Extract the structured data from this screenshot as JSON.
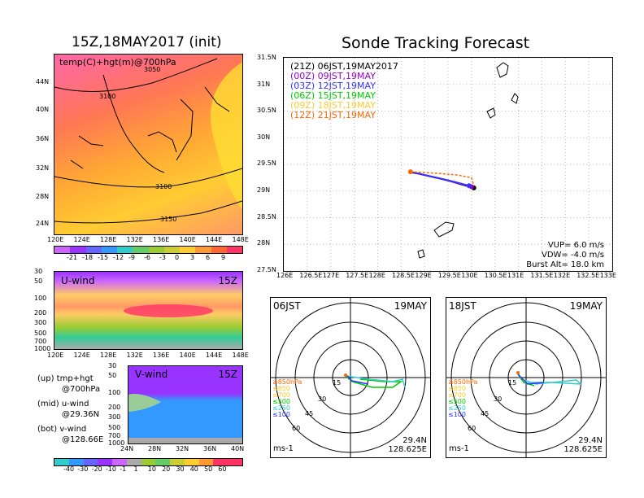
{
  "init_title": "15Z,18MAY2017 (init)",
  "main_title": "Sonde Tracking Forecast",
  "map700": {
    "label": "temp(C)+hgt(m)@700hPa",
    "contours": [
      "3050",
      "3100",
      "3100",
      "3150"
    ],
    "xticks": [
      "120E",
      "124E",
      "128E",
      "132E",
      "136E",
      "140E",
      "144E",
      "148E"
    ],
    "yticks": [
      "44N",
      "40N",
      "36N",
      "32N",
      "28N",
      "24N"
    ],
    "colorbar": [
      "-21",
      "-18",
      "-15",
      "-12",
      "-9",
      "-6",
      "-3",
      "0",
      "3",
      "6",
      "9"
    ],
    "colors": [
      "#cc66ff",
      "#9933ff",
      "#6666ff",
      "#3399ff",
      "#33cccc",
      "#66cc66",
      "#99cc33",
      "#cccc33",
      "#ffcc33",
      "#ff9933",
      "#ff6633",
      "#ff3366"
    ]
  },
  "uwind": {
    "label": "U-wind",
    "time": "15Z",
    "yticks": [
      "30",
      "50",
      "100",
      "200",
      "300",
      "500",
      "700",
      "1000"
    ],
    "xticks": [
      "120E",
      "124E",
      "128E",
      "132E",
      "136E",
      "140E",
      "144E",
      "148E"
    ]
  },
  "vwind": {
    "label": "V-wind",
    "time": "15Z",
    "yticks": [
      "30",
      "50",
      "100",
      "200",
      "300",
      "500",
      "700",
      "1000"
    ],
    "xticks": [
      "24N",
      "28N",
      "32N",
      "36N",
      "40N"
    ],
    "colorbar": [
      "-40",
      "-30",
      "-20",
      "-10",
      "-1",
      "1",
      "10",
      "20",
      "30",
      "40",
      "50",
      "60"
    ]
  },
  "notes": {
    "up_a": "(up) tmp+hgt",
    "up_b": "@700hPa",
    "mid_a": "(mid) u-wind",
    "mid_b": "@29.36N",
    "bot_a": "(bot) v-wind",
    "bot_b": "@128.66E"
  },
  "track": {
    "legend": [
      {
        "text": "(21Z) 06JST,19MAY2017",
        "color": "#000000"
      },
      {
        "text": "(00Z) 09JST,19MAY",
        "color": "#9900cc"
      },
      {
        "text": "(03Z) 12JST,19MAY",
        "color": "#3333ff"
      },
      {
        "text": "(06Z) 15JST,19MAY",
        "color": "#00cc00"
      },
      {
        "text": "(09Z) 18JST,19MAY",
        "color": "#ffcc33"
      },
      {
        "text": "(12Z) 21JST,19MAY",
        "color": "#ff6600"
      }
    ],
    "yticks": [
      "31.5N",
      "31N",
      "30.5N",
      "30N",
      "29.5N",
      "29N",
      "28.5N",
      "28N",
      "27.5N"
    ],
    "xticks": [
      "126E",
      "126.5E",
      "127E",
      "127.5E",
      "128E",
      "128.5E",
      "129E",
      "129.5E",
      "130E",
      "130.5E",
      "131E",
      "131.5E",
      "132E",
      "132.5E",
      "133E"
    ],
    "vup": "VUP=  6.0  m/s",
    "vdw": "VDW= -4.0  m/s",
    "burst": "Burst Alt=  18.0  km"
  },
  "hodo_left": {
    "time": "06JST",
    "date": "19MAY",
    "lat": "29.4N",
    "lon": "128.625E",
    "unit": "ms-1",
    "rings": [
      "15",
      "30",
      "45",
      "60"
    ],
    "levels": [
      "≥850hPa",
      "≤850",
      "≤700",
      "≤500",
      "≤250",
      "≤100"
    ]
  },
  "hodo_right": {
    "time": "18JST",
    "date": "19MAY",
    "lat": "29.4N",
    "lon": "128.625E",
    "unit": "ms-1",
    "rings": [
      "15",
      "30",
      "45",
      "60"
    ],
    "levels": [
      "≥850hPa",
      "≤850",
      "≤700",
      "≤500",
      "≤250",
      "≤100"
    ]
  },
  "chart_data": {
    "type": "line",
    "title": "Sonde Tracking Forecast",
    "xlim": [
      126,
      133
    ],
    "ylim": [
      27.5,
      31.5
    ],
    "series": [
      {
        "name": "(21Z) 06JST,19MAY2017",
        "x": [
          130.05,
          129.8,
          129.5,
          129.2,
          128.9,
          128.65
        ],
        "y": [
          29.06,
          29.12,
          29.2,
          29.26,
          29.32,
          29.36
        ]
      },
      {
        "name": "(00Z) 09JST,19MAY",
        "x": [
          130.0,
          129.7,
          129.3,
          128.9,
          128.7
        ],
        "y": [
          29.08,
          29.15,
          29.24,
          29.32,
          29.36
        ]
      },
      {
        "name": "(03Z) 12JST,19MAY",
        "x": [
          129.95,
          129.6,
          129.2,
          128.9,
          128.7
        ],
        "y": [
          29.1,
          29.18,
          29.26,
          29.32,
          29.36
        ]
      },
      {
        "name": "(12Z) 21JST,19MAY",
        "x": [
          128.7,
          128.95,
          129.3,
          129.7,
          130.0,
          130.05
        ],
        "y": [
          29.36,
          29.35,
          29.33,
          29.3,
          29.25,
          29.1
        ]
      }
    ]
  }
}
